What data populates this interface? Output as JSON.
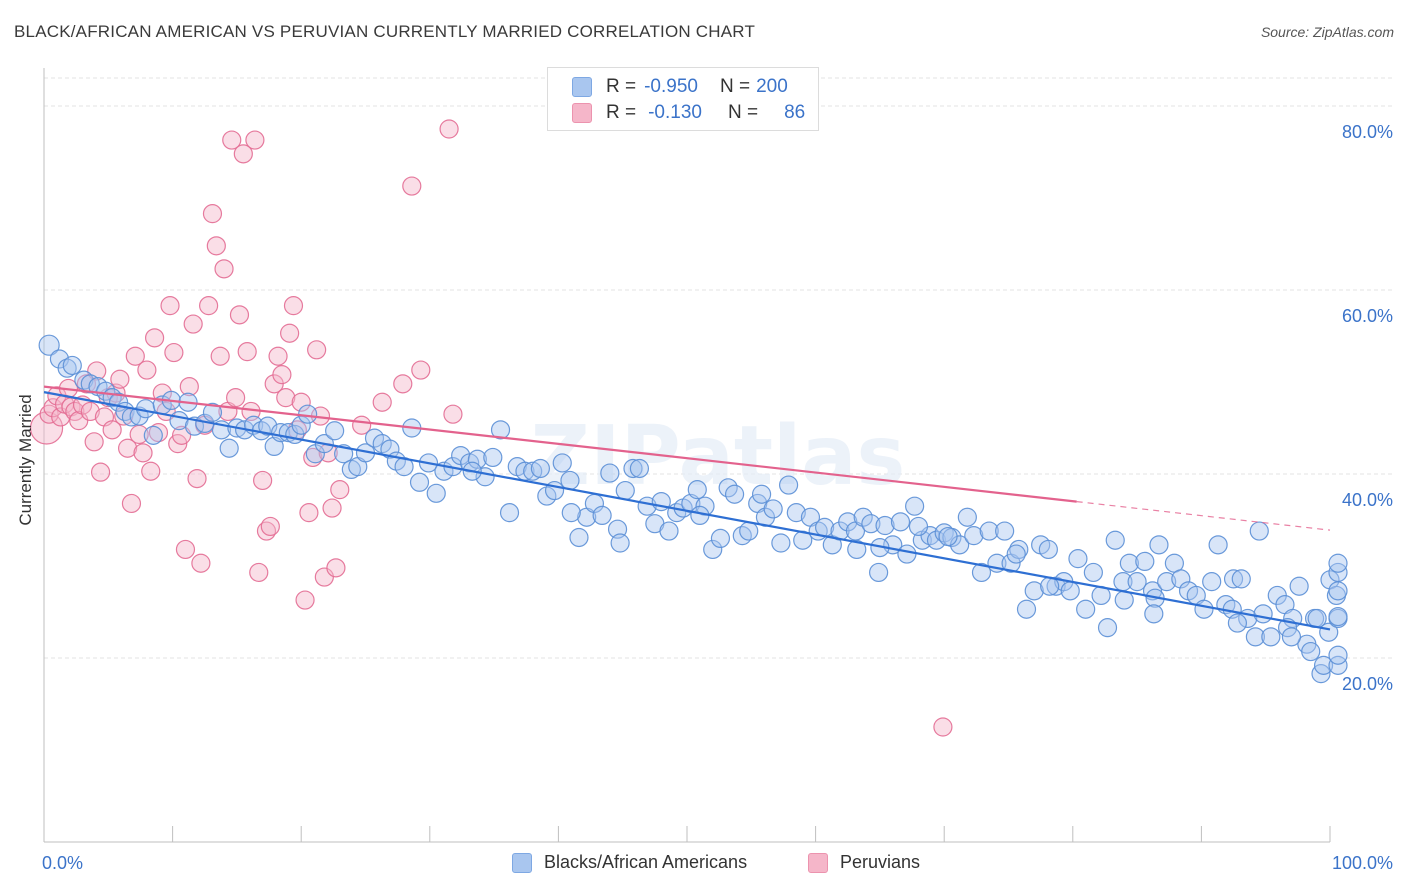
{
  "title": "BLACK/AFRICAN AMERICAN VS PERUVIAN CURRENTLY MARRIED CORRELATION CHART",
  "source": "Source: ZipAtlas.com",
  "watermark": "ZIPatlas",
  "legend": {
    "r_label": "R =",
    "n_label": "N =",
    "rows": [
      {
        "r": "-0.950",
        "n": "200",
        "color": "#a9c6ef"
      },
      {
        "r": "-0.130",
        "n": "86",
        "color": "#f5b6c9"
      }
    ]
  },
  "chart_data": {
    "type": "scatter",
    "xlabel": "",
    "ylabel": "Currently Married",
    "xlim": [
      0,
      100
    ],
    "ylim": [
      0,
      85
    ],
    "x_tick_labels": [
      "0.0%",
      "100.0%"
    ],
    "y_ticks": [
      20,
      40,
      60,
      80
    ],
    "y_tick_labels": [
      "20.0%",
      "40.0%",
      "60.0%",
      "80.0%"
    ],
    "grid": true,
    "legend_position": "top-center",
    "series": [
      {
        "name": "Blacks/African Americans",
        "color": "#5b8fd6",
        "fill": "#a9c6ef",
        "trend": {
          "x0": 0,
          "y0": 48.9,
          "x1": 100,
          "y1": 23.1
        },
        "points": [
          [
            0.4,
            54
          ],
          [
            1.2,
            52.5
          ],
          [
            1.8,
            51.5
          ],
          [
            2.2,
            51.8
          ],
          [
            3.1,
            50.2
          ],
          [
            3.6,
            49.8
          ],
          [
            4.2,
            49.5
          ],
          [
            4.8,
            49
          ],
          [
            5.3,
            48.3
          ],
          [
            5.8,
            47.8
          ],
          [
            6.3,
            46.8
          ],
          [
            6.8,
            46.2
          ],
          [
            7.4,
            46.3
          ],
          [
            7.9,
            47.1
          ],
          [
            8.5,
            44.2
          ],
          [
            9.2,
            47.5
          ],
          [
            9.9,
            48
          ],
          [
            10.5,
            45.8
          ],
          [
            11.2,
            47.8
          ],
          [
            11.7,
            45.2
          ],
          [
            12.5,
            45.5
          ],
          [
            13.1,
            46.7
          ],
          [
            13.8,
            44.8
          ],
          [
            14.4,
            42.8
          ],
          [
            15,
            45
          ],
          [
            15.6,
            44.8
          ],
          [
            16.3,
            45.3
          ],
          [
            16.9,
            44.7
          ],
          [
            17.4,
            45.2
          ],
          [
            17.9,
            43
          ],
          [
            18.4,
            44.5
          ],
          [
            19,
            44.5
          ],
          [
            19.5,
            44.3
          ],
          [
            20,
            45.3
          ],
          [
            20.5,
            46.5
          ],
          [
            21.1,
            42.2
          ],
          [
            21.8,
            43.3
          ],
          [
            22.6,
            44.7
          ],
          [
            23.3,
            42.2
          ],
          [
            23.9,
            40.5
          ],
          [
            24.4,
            40.8
          ],
          [
            25,
            42.3
          ],
          [
            25.7,
            43.9
          ],
          [
            26.3,
            43.3
          ],
          [
            26.9,
            42.7
          ],
          [
            27.4,
            41.4
          ],
          [
            28,
            40.8
          ],
          [
            28.6,
            45
          ],
          [
            29.2,
            39.1
          ],
          [
            29.9,
            41.2
          ],
          [
            30.5,
            37.9
          ],
          [
            31.1,
            40.3
          ],
          [
            31.8,
            40.8
          ],
          [
            32.4,
            42
          ],
          [
            33.1,
            41.2
          ],
          [
            33.7,
            41.6
          ],
          [
            34.3,
            39.7
          ],
          [
            34.9,
            41.8
          ],
          [
            35.5,
            44.8
          ],
          [
            36.2,
            35.8
          ],
          [
            36.8,
            40.8
          ],
          [
            37.4,
            40.3
          ],
          [
            38,
            40.3
          ],
          [
            38.6,
            40.6
          ],
          [
            39.1,
            37.6
          ],
          [
            39.7,
            38.2
          ],
          [
            40.3,
            41.2
          ],
          [
            40.9,
            39.3
          ],
          [
            41.6,
            33.1
          ],
          [
            42.2,
            35.3
          ],
          [
            42.8,
            36.8
          ],
          [
            43.4,
            35.5
          ],
          [
            44,
            40.1
          ],
          [
            44.6,
            34
          ],
          [
            45.2,
            38.2
          ],
          [
            45.8,
            40.6
          ],
          [
            46.3,
            40.6
          ],
          [
            46.9,
            36.5
          ],
          [
            47.5,
            34.6
          ],
          [
            48,
            37
          ],
          [
            48.6,
            33.8
          ],
          [
            49.2,
            35.8
          ],
          [
            49.7,
            36.3
          ],
          [
            50.3,
            36.8
          ],
          [
            50.8,
            38.3
          ],
          [
            51.4,
            36.5
          ],
          [
            52,
            31.8
          ],
          [
            52.6,
            33
          ],
          [
            53.2,
            38.5
          ],
          [
            53.7,
            37.8
          ],
          [
            54.3,
            33.3
          ],
          [
            54.8,
            33.8
          ],
          [
            55.5,
            36.8
          ],
          [
            56.1,
            35.3
          ],
          [
            56.7,
            36.2
          ],
          [
            57.3,
            32.5
          ],
          [
            57.9,
            38.8
          ],
          [
            58.5,
            35.8
          ],
          [
            59,
            32.8
          ],
          [
            59.6,
            35.3
          ],
          [
            60.2,
            33.8
          ],
          [
            60.7,
            34.2
          ],
          [
            61.3,
            32.3
          ],
          [
            61.9,
            33.8
          ],
          [
            62.5,
            34.8
          ],
          [
            63.1,
            33.8
          ],
          [
            63.7,
            35.3
          ],
          [
            64.3,
            34.6
          ],
          [
            64.9,
            29.3
          ],
          [
            65.4,
            34.4
          ],
          [
            66,
            32.3
          ],
          [
            66.6,
            34.8
          ],
          [
            67.1,
            31.3
          ],
          [
            67.7,
            36.5
          ],
          [
            68.3,
            32.8
          ],
          [
            68.9,
            33.3
          ],
          [
            69.4,
            32.8
          ],
          [
            70,
            33.6
          ],
          [
            70.6,
            33.1
          ],
          [
            71.2,
            32.3
          ],
          [
            71.8,
            35.3
          ],
          [
            72.3,
            33.3
          ],
          [
            72.9,
            29.3
          ],
          [
            73.5,
            33.8
          ],
          [
            74.1,
            30.3
          ],
          [
            74.7,
            33.8
          ],
          [
            75.2,
            30.3
          ],
          [
            75.8,
            31.8
          ],
          [
            76.4,
            25.3
          ],
          [
            77,
            27.3
          ],
          [
            77.5,
            32.3
          ],
          [
            78.1,
            31.8
          ],
          [
            78.7,
            27.8
          ],
          [
            79.3,
            28.3
          ],
          [
            79.8,
            27.3
          ],
          [
            80.4,
            30.8
          ],
          [
            81,
            25.3
          ],
          [
            81.6,
            29.3
          ],
          [
            82.2,
            26.8
          ],
          [
            82.7,
            23.3
          ],
          [
            83.3,
            32.8
          ],
          [
            83.9,
            28.3
          ],
          [
            84.4,
            30.3
          ],
          [
            85,
            28.3
          ],
          [
            85.6,
            30.5
          ],
          [
            86.2,
            27.3
          ],
          [
            86.7,
            32.3
          ],
          [
            87.3,
            28.3
          ],
          [
            87.9,
            30.3
          ],
          [
            88.4,
            28.6
          ],
          [
            89,
            27.3
          ],
          [
            89.6,
            26.8
          ],
          [
            90.2,
            25.3
          ],
          [
            90.8,
            28.3
          ],
          [
            91.3,
            32.3
          ],
          [
            91.9,
            25.8
          ],
          [
            92.5,
            28.6
          ],
          [
            93.1,
            28.6
          ],
          [
            93.6,
            24.3
          ],
          [
            94.2,
            22.3
          ],
          [
            94.8,
            24.8
          ],
          [
            95.4,
            22.3
          ],
          [
            95.9,
            26.8
          ],
          [
            96.5,
            25.8
          ],
          [
            97.1,
            24.3
          ],
          [
            97.6,
            27.8
          ],
          [
            98.2,
            21.5
          ],
          [
            98.8,
            24.3
          ],
          [
            99.3,
            18.3
          ],
          [
            99.9,
            22.8
          ],
          [
            70.3,
            33.2
          ],
          [
            78.2,
            27.8
          ],
          [
            86.4,
            26.5
          ],
          [
            92.4,
            25.3
          ],
          [
            96.7,
            23.3
          ],
          [
            98.5,
            20.7
          ],
          [
            99,
            24.3
          ],
          [
            99.5,
            19.2
          ],
          [
            100,
            28.5
          ],
          [
            100.5,
            26.8
          ],
          [
            101,
            19.2
          ],
          [
            101.5,
            27.3
          ],
          [
            102,
            20.3
          ],
          [
            102.2,
            24.3
          ],
          [
            102.5,
            29.3
          ],
          [
            101.8,
            30.3
          ],
          [
            100.8,
            24.5
          ],
          [
            97,
            22.3
          ],
          [
            94.5,
            33.8
          ],
          [
            92.8,
            23.8
          ],
          [
            86.3,
            24.8
          ],
          [
            84,
            26.3
          ],
          [
            75.6,
            31.3
          ],
          [
            68,
            34.3
          ],
          [
            65,
            32
          ],
          [
            63.2,
            31.8
          ],
          [
            55.8,
            37.8
          ],
          [
            51,
            35.5
          ],
          [
            44.8,
            32.5
          ],
          [
            41,
            35.8
          ],
          [
            33.3,
            40.3
          ]
        ]
      },
      {
        "name": "Peruvians",
        "color": "#e36d93",
        "fill": "#f5b6c9",
        "trend": {
          "x0": 0,
          "y0": 49.5,
          "x1": 80.3,
          "y1": 37.0,
          "dash_to_x": 100,
          "dash_to_y": 33.9
        },
        "points": [
          [
            0.2,
            45
          ],
          [
            0.4,
            46.5
          ],
          [
            0.7,
            47.2
          ],
          [
            1,
            48.5
          ],
          [
            1.3,
            46.2
          ],
          [
            1.6,
            47.6
          ],
          [
            1.9,
            49.3
          ],
          [
            2.1,
            47.3
          ],
          [
            2.4,
            46.8
          ],
          [
            2.7,
            45.8
          ],
          [
            3,
            47.5
          ],
          [
            3.3,
            49.8
          ],
          [
            3.6,
            46.8
          ],
          [
            3.9,
            43.5
          ],
          [
            4.1,
            51.2
          ],
          [
            4.4,
            40.2
          ],
          [
            4.7,
            46.2
          ],
          [
            5,
            48.3
          ],
          [
            5.3,
            44.8
          ],
          [
            5.6,
            48.8
          ],
          [
            5.9,
            50.3
          ],
          [
            6.2,
            46.3
          ],
          [
            6.5,
            42.8
          ],
          [
            6.8,
            36.8
          ],
          [
            7.1,
            52.8
          ],
          [
            7.4,
            44.3
          ],
          [
            7.7,
            42.3
          ],
          [
            8,
            51.3
          ],
          [
            8.3,
            40.3
          ],
          [
            8.6,
            54.8
          ],
          [
            8.9,
            44.5
          ],
          [
            9.2,
            48.8
          ],
          [
            9.5,
            46.8
          ],
          [
            9.8,
            58.3
          ],
          [
            10.1,
            53.2
          ],
          [
            10.4,
            43.3
          ],
          [
            10.7,
            44.2
          ],
          [
            11,
            31.8
          ],
          [
            11.3,
            49.5
          ],
          [
            11.6,
            56.3
          ],
          [
            11.9,
            39.5
          ],
          [
            12.2,
            30.3
          ],
          [
            12.5,
            45.3
          ],
          [
            12.8,
            58.3
          ],
          [
            13.1,
            68.3
          ],
          [
            13.4,
            64.8
          ],
          [
            13.7,
            52.8
          ],
          [
            14,
            62.3
          ],
          [
            14.3,
            46.8
          ],
          [
            14.6,
            76.3
          ],
          [
            14.9,
            48.3
          ],
          [
            15.2,
            57.3
          ],
          [
            15.5,
            74.8
          ],
          [
            15.8,
            53.3
          ],
          [
            16.1,
            46.8
          ],
          [
            16.4,
            76.3
          ],
          [
            16.7,
            29.3
          ],
          [
            17,
            39.3
          ],
          [
            17.3,
            33.8
          ],
          [
            17.6,
            34.3
          ],
          [
            17.9,
            49.8
          ],
          [
            18.2,
            52.8
          ],
          [
            18.5,
            50.8
          ],
          [
            18.8,
            48.3
          ],
          [
            19.1,
            55.3
          ],
          [
            19.4,
            58.3
          ],
          [
            19.7,
            44.8
          ],
          [
            20,
            47.8
          ],
          [
            20.3,
            26.3
          ],
          [
            20.6,
            35.8
          ],
          [
            20.9,
            41.8
          ],
          [
            21.2,
            53.5
          ],
          [
            21.5,
            46.3
          ],
          [
            21.8,
            28.8
          ],
          [
            22.1,
            42.3
          ],
          [
            22.4,
            36.3
          ],
          [
            22.7,
            29.8
          ],
          [
            23,
            38.3
          ],
          [
            28.6,
            71.3
          ],
          [
            31.8,
            46.5
          ],
          [
            31.5,
            77.5
          ],
          [
            69.9,
            12.5
          ],
          [
            24.7,
            45.3
          ],
          [
            26.3,
            47.8
          ],
          [
            27.9,
            49.8
          ],
          [
            29.3,
            51.3
          ]
        ]
      }
    ]
  },
  "bottom_legend": [
    "Blacks/African Americans",
    "Peruvians"
  ]
}
